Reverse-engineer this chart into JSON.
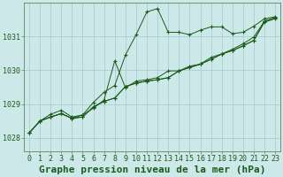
{
  "title": "Graphe pression niveau de la mer (hPa)",
  "bg_color": "#cce8e8",
  "line_color": "#1a5c1a",
  "grid_color": "#aacece",
  "xlim": [
    -0.5,
    23.5
  ],
  "ylim": [
    1027.6,
    1032.0
  ],
  "yticks": [
    1028,
    1029,
    1030,
    1031
  ],
  "xticks": [
    0,
    1,
    2,
    3,
    4,
    5,
    6,
    7,
    8,
    9,
    10,
    11,
    12,
    13,
    14,
    15,
    16,
    17,
    18,
    19,
    20,
    21,
    22,
    23
  ],
  "series": [
    [
      1028.15,
      1028.5,
      1028.7,
      1028.82,
      1028.62,
      1028.68,
      1029.05,
      1029.35,
      1029.55,
      1030.45,
      1031.05,
      1031.72,
      1031.82,
      1031.12,
      1031.12,
      1031.05,
      1031.18,
      1031.28,
      1031.28,
      1031.08,
      1031.12,
      1031.3,
      1031.52,
      1031.58
    ],
    [
      1028.15,
      1028.5,
      1028.62,
      1028.72,
      1028.58,
      1028.62,
      1028.92,
      1029.08,
      1029.18,
      1029.52,
      1029.62,
      1029.68,
      1029.72,
      1029.78,
      1029.98,
      1030.08,
      1030.18,
      1030.32,
      1030.48,
      1030.58,
      1030.72,
      1030.88,
      1031.42,
      1031.52
    ],
    [
      1028.15,
      1028.5,
      1028.62,
      1028.72,
      1028.58,
      1028.62,
      1028.92,
      1029.08,
      1029.18,
      1029.52,
      1029.62,
      1029.68,
      1029.72,
      1029.78,
      1029.98,
      1030.08,
      1030.18,
      1030.32,
      1030.48,
      1030.58,
      1030.72,
      1030.88,
      1031.45,
      1031.55
    ],
    [
      1028.15,
      1028.5,
      1028.62,
      1028.72,
      1028.58,
      1028.68,
      1028.88,
      1029.12,
      1030.28,
      1029.48,
      1029.68,
      1029.72,
      1029.78,
      1029.98,
      1029.98,
      1030.12,
      1030.18,
      1030.38,
      1030.48,
      1030.62,
      1030.78,
      1030.98,
      1031.45,
      1031.55
    ]
  ],
  "tick_fontsize": 6,
  "title_fontsize": 8,
  "spine_color": "#5a8a5a"
}
